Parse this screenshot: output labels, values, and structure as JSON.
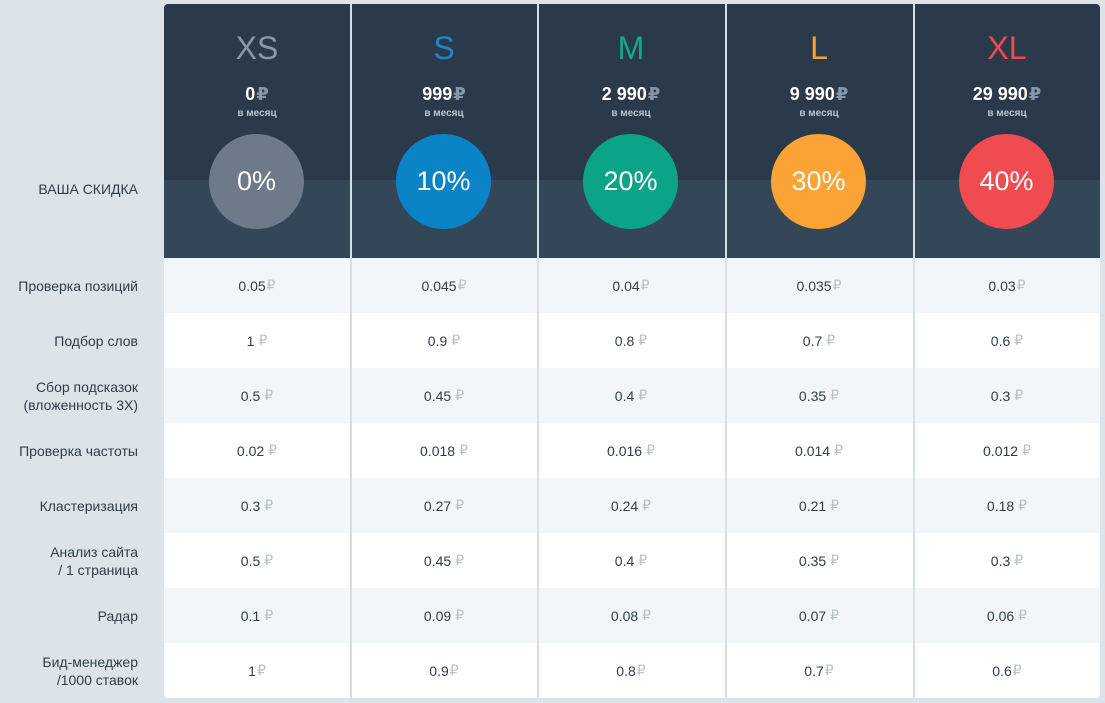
{
  "discount_label": "ВАША СКИДКА",
  "currency_symbol": "₽",
  "plans": [
    {
      "name": "XS",
      "price": "0",
      "period": "в месяц",
      "discount": "0%",
      "name_color": "#8a97a5",
      "circle_color": "#6d7a8a"
    },
    {
      "name": "S",
      "price": "999",
      "period": "в месяц",
      "discount": "10%",
      "name_color": "#1a88c9",
      "circle_color": "#0a84c6"
    },
    {
      "name": "M",
      "price": "2 990",
      "period": "в месяц",
      "discount": "20%",
      "name_color": "#13a98c",
      "circle_color": "#0ba489"
    },
    {
      "name": "L",
      "price": "9 990",
      "period": "в месяц",
      "discount": "30%",
      "name_color": "#f5a333",
      "circle_color": "#fba334"
    },
    {
      "name": "XL",
      "price": "29 990",
      "period": "в месяц",
      "discount": "40%",
      "name_color": "#ee4b4f",
      "circle_color": "#f04b50"
    }
  ],
  "rows": [
    {
      "label": "Проверка позиций",
      "values": [
        "0.05",
        "0.045",
        "0.04",
        "0.035",
        "0.03"
      ]
    },
    {
      "label": "Подбор слов",
      "values": [
        "1",
        "0.9",
        "0.8",
        "0.7",
        "0.6"
      ]
    },
    {
      "label": "Сбор подсказок\n(вложенность 3Х)",
      "values": [
        "0.5",
        "0.45",
        "0.4",
        "0.35",
        "0.3"
      ]
    },
    {
      "label": "Проверка частоты",
      "values": [
        "0.02",
        "0.018",
        "0.016",
        "0.014",
        "0.012"
      ]
    },
    {
      "label": "Кластеризация",
      "values": [
        "0.3",
        "0.27",
        "0.24",
        "0.21",
        "0.18"
      ]
    },
    {
      "label": "Анализ сайта\n/ 1 страница",
      "values": [
        "0.5",
        "0.45",
        "0.4",
        "0.35",
        "0.3"
      ]
    },
    {
      "label": "Радар",
      "values": [
        "0.1",
        "0.09",
        "0.08",
        "0.07",
        "0.06"
      ]
    },
    {
      "label": "Бид-менеджер\n/1000 ставок",
      "values": [
        "1",
        "0.9",
        "0.8",
        "0.7",
        "0.6"
      ]
    }
  ]
}
